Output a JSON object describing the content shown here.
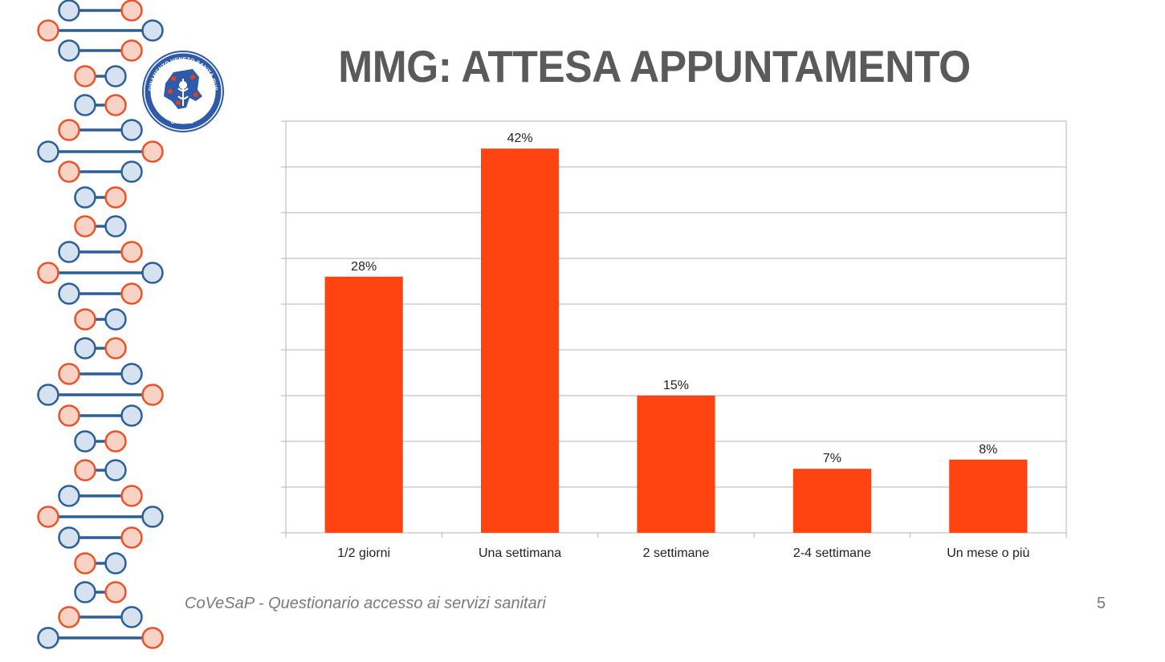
{
  "slide": {
    "title": "MMG: ATTESA APPUNTAMENTO",
    "footer": "CoVeSaP - Questionario accesso ai servizi sanitari",
    "page_number": "5"
  },
  "logo": {
    "ring_text": "COORDINAMENTO VENETO SANITÀ PUBBLICA",
    "bottom_text": "CoVeSaP",
    "colors": {
      "ring": "#2e5aa8",
      "region": "#2e5aa8",
      "pins": "#e04020"
    }
  },
  "decoration": {
    "name": "dna-helix",
    "colors": {
      "orange": "#e8542a",
      "orange_fill": "#f8d2c4",
      "blue": "#2d5f96",
      "blue_fill": "#d6e2f0"
    }
  },
  "chart_data": {
    "type": "bar",
    "categories": [
      "1/2 giorni",
      "Una settimana",
      "2 settimane",
      "2-4 settimane",
      "Un mese o più"
    ],
    "values": [
      28,
      42,
      15,
      7,
      8
    ],
    "data_labels": [
      "28%",
      "42%",
      "15%",
      "7%",
      "8%"
    ],
    "ylim": [
      0,
      45
    ],
    "y_gridline_step": 5,
    "y_tick_labels_shown": false,
    "grid": true,
    "bar_color": "#ff4411",
    "grid_color": "#b3b3b3",
    "title": "",
    "xlabel": "",
    "ylabel": ""
  }
}
